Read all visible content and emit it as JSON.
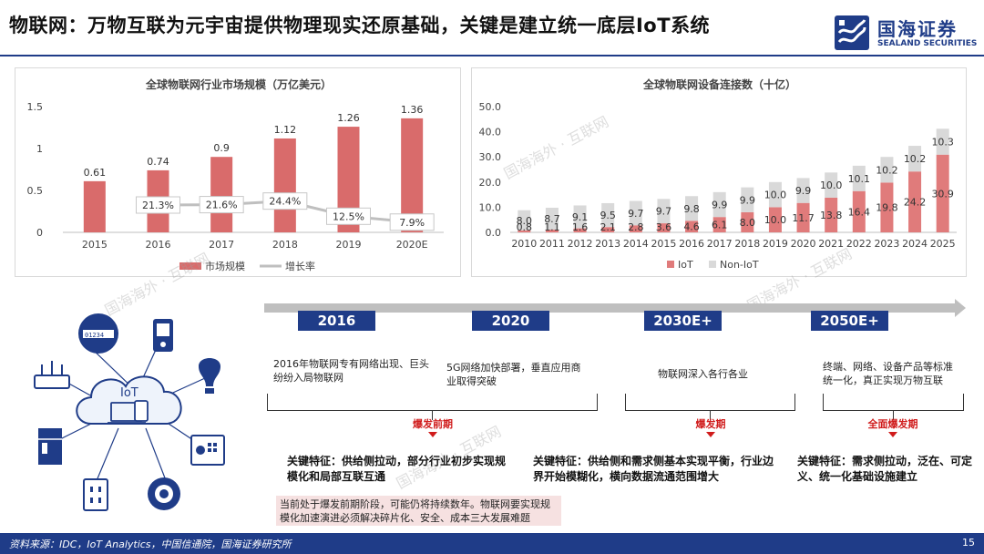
{
  "header": {
    "title": "物联网：万物互联为元宇宙提供物理现实还原基础，关键是建立统一底层IoT系统",
    "logo_cn": "国海证券",
    "logo_en": "SEALAND SECURITIES"
  },
  "watermark": "国海海外 · 互联网",
  "chart_data": [
    {
      "type": "bar",
      "title": "全球物联网行业市场规模（万亿美元）",
      "categories": [
        "2015",
        "2016",
        "2017",
        "2018",
        "2019",
        "2020E"
      ],
      "series": [
        {
          "name": "市场规模",
          "type": "bar",
          "values": [
            0.61,
            0.74,
            0.9,
            1.12,
            1.26,
            1.36
          ],
          "labels": [
            "0.61",
            "0.74",
            "0.9",
            "1.12",
            "1.26",
            "1.36"
          ],
          "color": "#d96b6b"
        },
        {
          "name": "增长率",
          "type": "line",
          "values": [
            null,
            21.3,
            21.6,
            24.4,
            12.5,
            7.9
          ],
          "labels": [
            "",
            "21.3%",
            "21.6%",
            "24.4%",
            "12.5%",
            "7.9%"
          ],
          "color": "#bfbfbf"
        }
      ],
      "yticks": [
        "1.5",
        "1",
        "0.5",
        "0"
      ],
      "ylim": [
        0,
        1.5
      ],
      "legend": "bottom"
    },
    {
      "type": "bar",
      "stacked": true,
      "title": "全球物联网设备连接数（十亿）",
      "categories": [
        "2010",
        "2011",
        "2012",
        "2013",
        "2014",
        "2015",
        "2016",
        "2017",
        "2018",
        "2019",
        "2020",
        "2021",
        "2022",
        "2023",
        "2024",
        "2025"
      ],
      "series": [
        {
          "name": "IoT",
          "values": [
            0.8,
            1.1,
            1.6,
            2.1,
            2.8,
            3.6,
            4.6,
            6.1,
            8.0,
            10.0,
            11.7,
            13.8,
            16.4,
            19.8,
            24.2,
            30.9
          ],
          "labels": [
            "0.8",
            "1.1",
            "1.6",
            "2.1",
            "2.8",
            "3.6",
            "4.6",
            "6.1",
            "8.0",
            "10.0",
            "11.7",
            "13.8",
            "16.4",
            "19.8",
            "24.2",
            "30.9"
          ],
          "color": "#e07b7b"
        },
        {
          "name": "Non-IoT",
          "values": [
            8.0,
            8.7,
            9.1,
            9.5,
            9.7,
            9.7,
            9.8,
            9.9,
            9.9,
            10.0,
            9.9,
            10.0,
            10.1,
            10.2,
            10.2,
            10.3
          ],
          "labels": [
            "8.0",
            "8.7",
            "9.1",
            "9.5",
            "9.7",
            "9.7",
            "9.8",
            "9.9",
            "9.9",
            "10.0",
            "9.9",
            "10.0",
            "10.1",
            "10.2",
            "10.2",
            "10.3"
          ],
          "color": "#d9d9d9"
        }
      ],
      "yticks": [
        "50.0",
        "40.0",
        "30.0",
        "20.0",
        "10.0",
        "0.0"
      ],
      "ylim": [
        0,
        50
      ],
      "legend": "bottom"
    }
  ],
  "diagram": {
    "center_label": "IoT",
    "meter_label": "01234"
  },
  "timeline": {
    "years": [
      "2016",
      "2020",
      "2030E+",
      "2050E+"
    ],
    "stages": [
      "2016年物联网专有网络出现、巨头纷纷入局物联网",
      "5G网络加快部署，垂直应用商业取得突破",
      "物联网深入各行各业",
      "终端、网络、设备产品等标准统一化，真正实现万物互联"
    ],
    "phases": [
      "爆发前期",
      "爆发期",
      "全面爆发期"
    ],
    "features": [
      "关键特征：供给侧拉动，部分行业初步实现规模化和局部互联互通",
      "关键特征：供给侧和需求侧基本实现平衡，行业边界开始模糊化，横向数据流通范围增大",
      "关键特征：需求侧拉动，泛在、可定义、统一化基础设施建立"
    ],
    "note": "当前处于爆发前期阶段，可能仍将持续数年。物联网要实现规模化加速演进必须解决碎片化、安全、成本三大发展难题"
  },
  "footer": {
    "source": "资料来源：IDC，IoT Analytics，中国信通院，国海证券研究所",
    "page": "15"
  }
}
